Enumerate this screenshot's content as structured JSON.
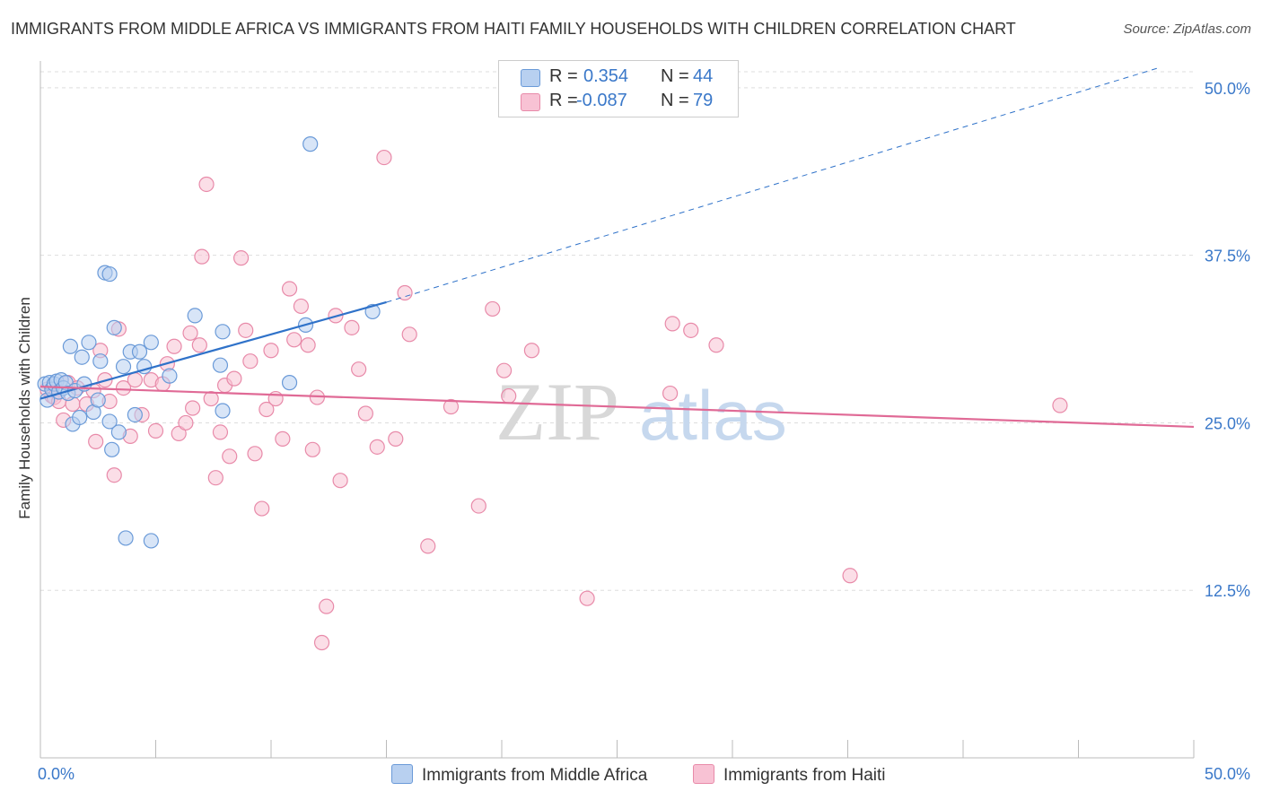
{
  "title": "IMMIGRANTS FROM MIDDLE AFRICA VS IMMIGRANTS FROM HAITI FAMILY HOUSEHOLDS WITH CHILDREN CORRELATION CHART",
  "source": "Source: ZipAtlas.com",
  "watermark": {
    "zip": "ZIP",
    "atlas": "atlas"
  },
  "colors": {
    "blue_fill": "#b8d0f0",
    "blue_stroke": "#6a9ad8",
    "blue_line": "#2f72c9",
    "pink_fill": "#f8c2d4",
    "pink_stroke": "#e88aa9",
    "pink_line": "#e06a96",
    "tick_label": "#3a78c9",
    "grid": "#dddddd"
  },
  "legend": {
    "rows": [
      {
        "r_key": "R =",
        "r_val": "0.354",
        "n_key": "N =",
        "n_val": "44"
      },
      {
        "r_key": "R =",
        "r_val": "-0.087",
        "n_key": "N =",
        "n_val": "79"
      }
    ]
  },
  "chart_data": {
    "type": "scatter",
    "title": "IMMIGRANTS FROM MIDDLE AFRICA VS IMMIGRANTS FROM HAITI FAMILY HOUSEHOLDS WITH CHILDREN CORRELATION CHART",
    "xlabel": "",
    "ylabel": "Family Households with Children",
    "xlim": [
      0,
      50
    ],
    "ylim": [
      0,
      52
    ],
    "x_tick_labels": [
      "0.0%",
      "50.0%"
    ],
    "y_ticks": [
      12.5,
      25.0,
      37.5,
      50.0
    ],
    "y_tick_labels": [
      "12.5%",
      "25.0%",
      "37.5%",
      "50.0%"
    ],
    "grid": "horizontal-dashed",
    "legend_placement": "top-center",
    "series": [
      {
        "name": "Immigrants from Middle Africa",
        "color": "blue",
        "r": 0.354,
        "n": 44,
        "trend": {
          "x0": 0,
          "y0": 26.8,
          "x1": 15,
          "y1": 34.0,
          "dash_to_x": 48.5,
          "dash_to_y": 51.5
        },
        "points": [
          [
            0.2,
            27.9
          ],
          [
            0.3,
            26.7
          ],
          [
            0.4,
            28.0
          ],
          [
            0.5,
            27.5
          ],
          [
            0.6,
            27.9
          ],
          [
            0.7,
            28.1
          ],
          [
            0.8,
            27.3
          ],
          [
            0.9,
            28.2
          ],
          [
            1.0,
            27.6
          ],
          [
            1.1,
            28.0
          ],
          [
            1.2,
            27.2
          ],
          [
            1.3,
            30.7
          ],
          [
            1.4,
            24.9
          ],
          [
            1.5,
            27.4
          ],
          [
            1.7,
            25.4
          ],
          [
            1.8,
            29.9
          ],
          [
            1.9,
            27.9
          ],
          [
            2.1,
            31.0
          ],
          [
            2.3,
            25.8
          ],
          [
            2.5,
            26.7
          ],
          [
            2.6,
            29.6
          ],
          [
            2.8,
            36.2
          ],
          [
            3.0,
            36.1
          ],
          [
            3.0,
            25.1
          ],
          [
            3.1,
            23.0
          ],
          [
            3.2,
            32.1
          ],
          [
            3.4,
            24.3
          ],
          [
            3.6,
            29.2
          ],
          [
            3.7,
            16.4
          ],
          [
            3.9,
            30.3
          ],
          [
            4.1,
            25.6
          ],
          [
            4.3,
            30.3
          ],
          [
            4.5,
            29.2
          ],
          [
            4.8,
            16.2
          ],
          [
            4.8,
            31.0
          ],
          [
            5.6,
            28.5
          ],
          [
            6.7,
            33.0
          ],
          [
            7.8,
            29.3
          ],
          [
            7.9,
            25.9
          ],
          [
            7.9,
            31.8
          ],
          [
            10.8,
            28.0
          ],
          [
            11.5,
            32.3
          ],
          [
            11.7,
            45.8
          ],
          [
            14.4,
            33.3
          ]
        ]
      },
      {
        "name": "Immigrants from Haiti",
        "color": "pink",
        "r": -0.087,
        "n": 79,
        "trend": {
          "x0": 0,
          "y0": 27.7,
          "x1": 50,
          "y1": 24.7
        },
        "points": [
          [
            0.3,
            27.5
          ],
          [
            0.5,
            27.0
          ],
          [
            0.6,
            26.9
          ],
          [
            0.8,
            26.6
          ],
          [
            1.0,
            25.2
          ],
          [
            1.2,
            28.0
          ],
          [
            1.4,
            26.4
          ],
          [
            1.6,
            27.6
          ],
          [
            2.0,
            26.4
          ],
          [
            2.3,
            27.4
          ],
          [
            2.4,
            23.6
          ],
          [
            2.6,
            30.4
          ],
          [
            2.8,
            28.2
          ],
          [
            3.0,
            26.6
          ],
          [
            3.2,
            21.1
          ],
          [
            3.4,
            32.0
          ],
          [
            3.6,
            27.6
          ],
          [
            3.9,
            24.0
          ],
          [
            4.1,
            28.2
          ],
          [
            4.4,
            25.6
          ],
          [
            4.8,
            28.2
          ],
          [
            5.0,
            24.4
          ],
          [
            5.3,
            27.9
          ],
          [
            5.5,
            29.4
          ],
          [
            5.8,
            30.7
          ],
          [
            6.0,
            24.2
          ],
          [
            6.3,
            25.0
          ],
          [
            6.5,
            31.7
          ],
          [
            6.6,
            26.1
          ],
          [
            6.9,
            30.8
          ],
          [
            7.0,
            37.4
          ],
          [
            7.2,
            42.8
          ],
          [
            7.4,
            26.8
          ],
          [
            7.6,
            20.9
          ],
          [
            7.8,
            24.3
          ],
          [
            8.0,
            27.8
          ],
          [
            8.2,
            22.5
          ],
          [
            8.4,
            28.3
          ],
          [
            8.7,
            37.3
          ],
          [
            8.9,
            31.9
          ],
          [
            9.1,
            29.6
          ],
          [
            9.3,
            22.7
          ],
          [
            9.6,
            18.6
          ],
          [
            9.8,
            26.0
          ],
          [
            10.0,
            30.4
          ],
          [
            10.2,
            26.8
          ],
          [
            10.5,
            23.8
          ],
          [
            10.8,
            35.0
          ],
          [
            11.0,
            31.2
          ],
          [
            11.3,
            33.7
          ],
          [
            11.6,
            30.8
          ],
          [
            11.8,
            23.0
          ],
          [
            12.0,
            26.9
          ],
          [
            12.4,
            11.3
          ],
          [
            12.2,
            8.6
          ],
          [
            12.8,
            33.0
          ],
          [
            13.0,
            20.7
          ],
          [
            13.5,
            32.1
          ],
          [
            13.8,
            29.0
          ],
          [
            14.1,
            25.7
          ],
          [
            14.6,
            23.2
          ],
          [
            14.9,
            44.8
          ],
          [
            15.4,
            23.8
          ],
          [
            15.8,
            34.7
          ],
          [
            16.0,
            31.6
          ],
          [
            16.8,
            15.8
          ],
          [
            17.8,
            26.2
          ],
          [
            19.0,
            18.8
          ],
          [
            19.6,
            33.5
          ],
          [
            20.1,
            28.9
          ],
          [
            20.3,
            27.0
          ],
          [
            21.3,
            30.4
          ],
          [
            23.7,
            11.9
          ],
          [
            27.3,
            27.2
          ],
          [
            27.4,
            32.4
          ],
          [
            28.2,
            31.9
          ],
          [
            29.3,
            30.8
          ],
          [
            35.1,
            13.6
          ],
          [
            44.2,
            26.3
          ]
        ]
      }
    ]
  }
}
